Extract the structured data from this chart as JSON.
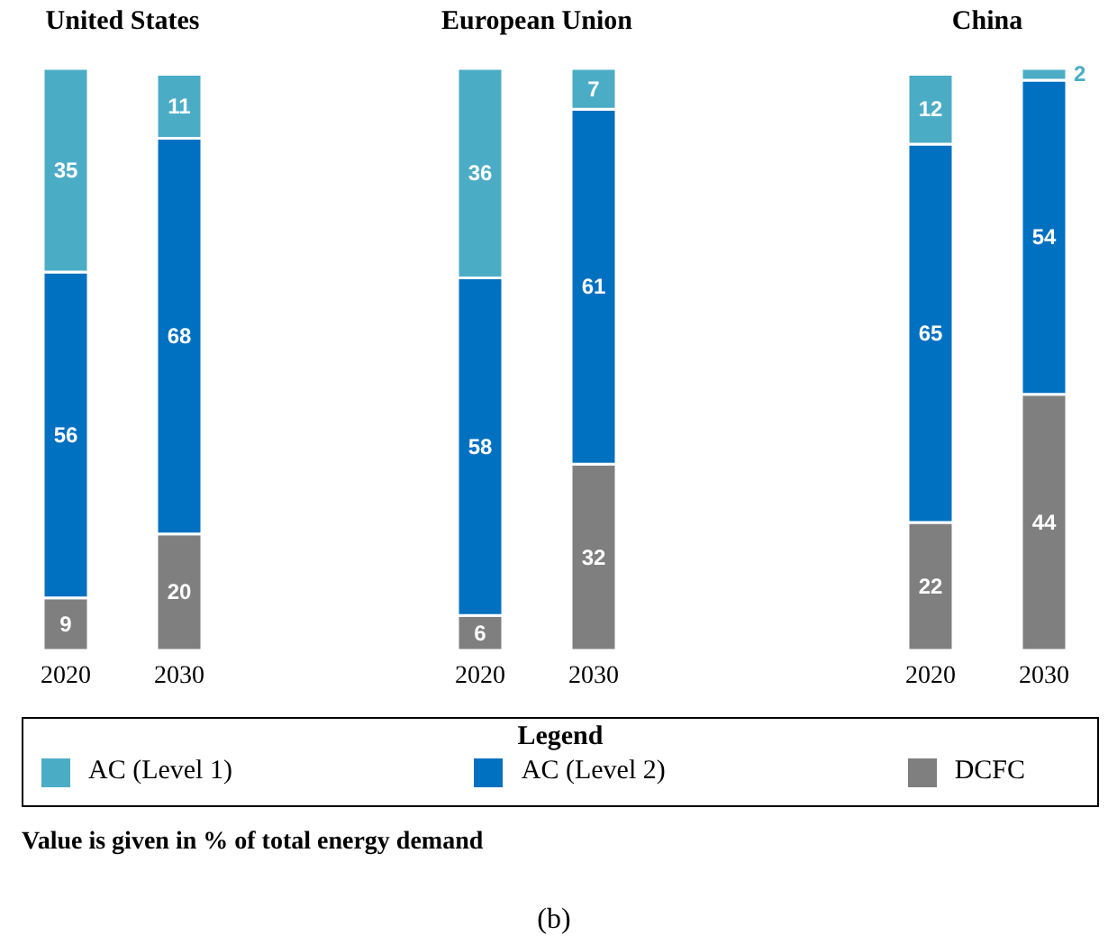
{
  "chart_data": [
    {
      "type": "bar",
      "title": "United States",
      "stacked": true,
      "data_labels": true,
      "categories": [
        "2020",
        "2030"
      ],
      "legend": "bottom",
      "legend_title": "Legend",
      "annotations": [
        "Value is given in % of total energy demand",
        "(b)"
      ],
      "series": [
        {
          "name": "DCFC",
          "color": "#7f7f7f",
          "values": [
            9,
            20
          ]
        },
        {
          "name": "AC (Level 2)",
          "color": "#0070c0",
          "values": [
            56,
            68
          ]
        },
        {
          "name": "AC (Level 1)",
          "color": "#4bacc6",
          "values": [
            35,
            11
          ]
        }
      ]
    },
    {
      "type": "bar",
      "title": "European Union",
      "stacked": true,
      "data_labels": true,
      "categories": [
        "2020",
        "2030"
      ],
      "series": [
        {
          "color": "#7f7f7f",
          "values": [
            6,
            32
          ]
        },
        {
          "color": "#0070c0",
          "values": [
            58,
            61
          ]
        },
        {
          "color": "#4bacc6",
          "values": [
            36,
            7
          ]
        }
      ]
    },
    {
      "type": "bar",
      "title": "China",
      "stacked": true,
      "data_labels": true,
      "categories": [
        "2020",
        "2030"
      ],
      "series": [
        {
          "color": "#7f7f7f",
          "values": [
            22,
            44
          ]
        },
        {
          "color": "#0070c0",
          "values": [
            65,
            54
          ]
        },
        {
          "color": "#4bacc6",
          "values": [
            12,
            2
          ]
        }
      ]
    }
  ]
}
